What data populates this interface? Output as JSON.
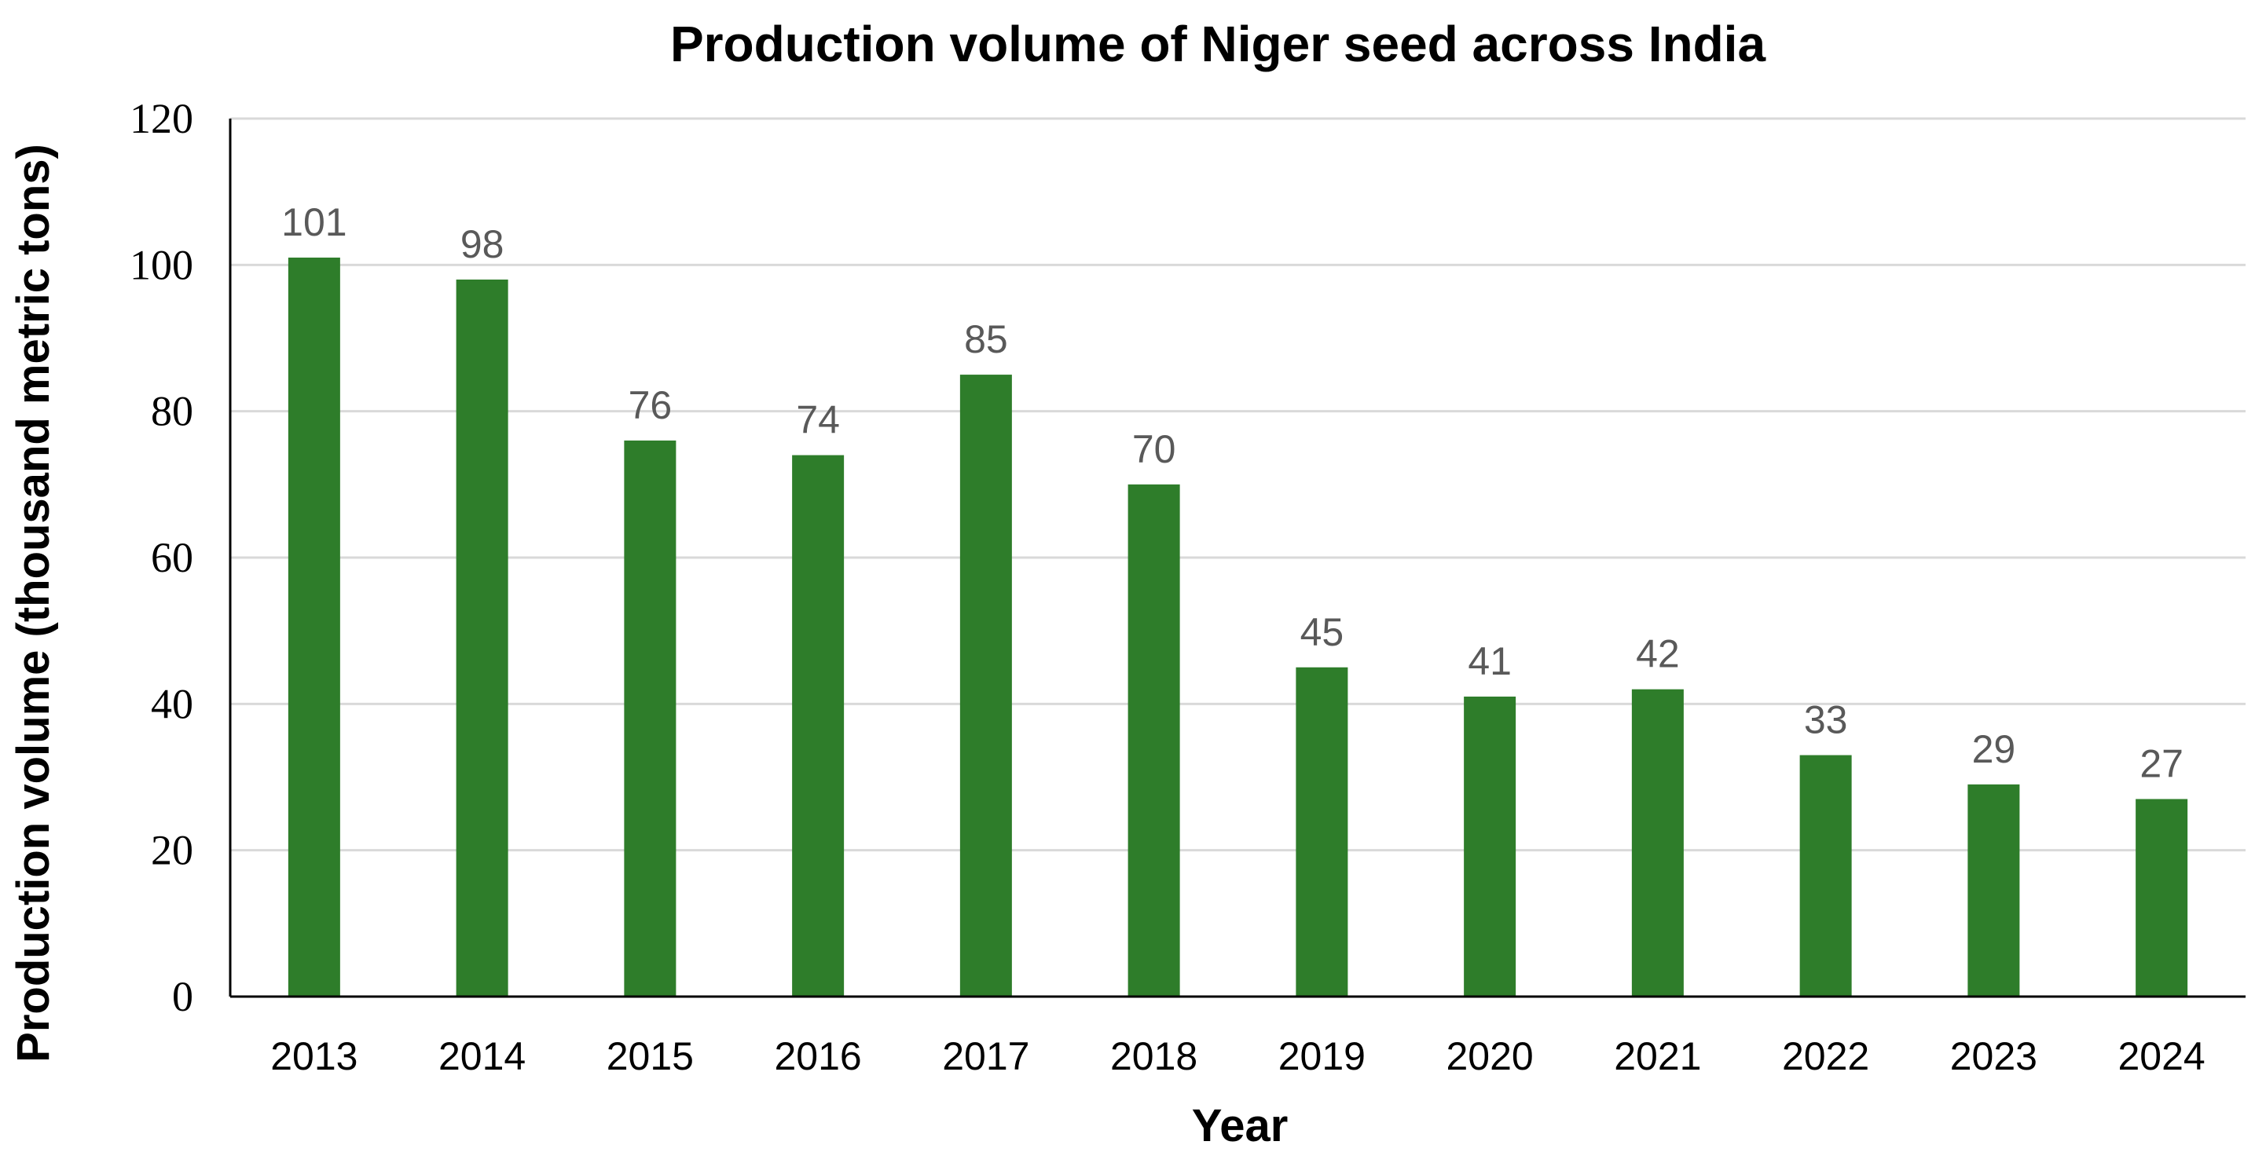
{
  "chart_data": {
    "type": "bar",
    "title": "Production volume of Niger seed across India",
    "xlabel": "Year",
    "ylabel": "Production volume (thousand metric tons)",
    "categories": [
      "2013",
      "2014",
      "2015",
      "2016",
      "2017",
      "2018",
      "2019",
      "2020",
      "2021",
      "2022",
      "2023",
      "2024"
    ],
    "values": [
      101,
      98,
      76,
      74,
      85,
      70,
      45,
      41,
      42,
      33,
      29,
      27
    ],
    "ylim": [
      0,
      120
    ],
    "yticks": [
      "0",
      "20",
      "40",
      "60",
      "80",
      "100",
      "120"
    ],
    "grid": true,
    "legend": "none",
    "bar_color": "#2e7d2a",
    "data_labels": true
  }
}
